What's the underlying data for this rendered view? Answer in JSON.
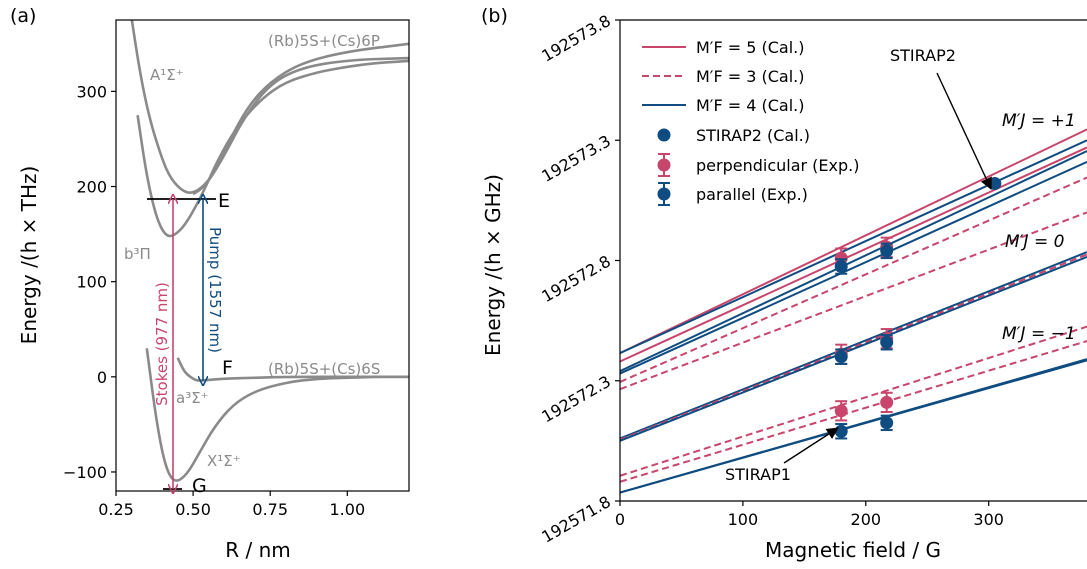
{
  "colors": {
    "red": "#c8456c",
    "blue": "#0f4c81",
    "gray": "#8a8a8a",
    "black": "#000000"
  },
  "panel_a": {
    "label": "(a)",
    "xlabel": "R / nm",
    "ylabel": "Energy /(h × THz)",
    "xticks": [
      "0.25",
      "0.50",
      "0.75",
      "1.00"
    ],
    "yticks": [
      "−100",
      "0",
      "100",
      "200",
      "300"
    ],
    "curve_labels": {
      "upper_asym": "(Rb)5S+(Cs)6P",
      "lower_asym": "(Rb)5S+(Cs)6S",
      "A": "A¹Σ⁺",
      "b": "b³Π",
      "a": "a³Σ⁺",
      "X": "X¹Σ⁺"
    },
    "states": {
      "E": "E",
      "F": "F",
      "G": "G"
    },
    "arrows": {
      "stokes": "Stokes (977 nm)",
      "pump": "Pump (1557 nm)"
    }
  },
  "panel_b": {
    "label": "(b)",
    "xlabel": "Magnetic field / G",
    "ylabel": "Energy /(h × GHz)",
    "xticks": [
      "0",
      "100",
      "200",
      "300"
    ],
    "yticks": [
      "192571.8",
      "192572.3",
      "192572.8",
      "192573.3",
      "192573.8"
    ],
    "legend": {
      "l1": "M′F = 5 (Cal.)",
      "l2": "M′F = 3 (Cal.)",
      "l3": "M′F = 4 (Cal.)",
      "l4": "STIRAP2 (Cal.)",
      "l5": "perpendicular (Exp.)",
      "l6": "parallel (Exp.)"
    },
    "mj_labels": {
      "plus": "M′J = +1",
      "zero": "M′J = 0",
      "minus": "M′J = −1"
    },
    "annotations": {
      "stirap1": "STIRAP1",
      "stirap2": "STIRAP2"
    }
  },
  "chart_data": [
    {
      "type": "line",
      "title": "",
      "xlabel": "R / nm",
      "ylabel": "Energy /(h × THz)",
      "xlim": [
        0.25,
        1.2
      ],
      "ylim": [
        -120,
        375
      ],
      "series": [
        {
          "name": "X¹Σ⁺",
          "x": [
            0.35,
            0.38,
            0.41,
            0.44,
            0.48,
            0.52,
            0.57,
            0.63,
            0.7,
            0.8,
            0.9,
            1.0,
            1.1,
            1.2
          ],
          "y": [
            30,
            -45,
            -95,
            -112,
            -103,
            -80,
            -52,
            -29,
            -15,
            -6,
            -2,
            -1,
            0,
            0
          ]
        },
        {
          "name": "a³Σ⁺",
          "x": [
            0.45,
            0.47,
            0.49,
            0.51,
            0.53,
            0.56,
            0.6,
            0.7,
            0.8,
            1.0,
            1.2
          ],
          "y": [
            20,
            6,
            0,
            -4,
            -4,
            -3,
            -2,
            -1,
            0,
            0,
            0
          ]
        },
        {
          "name": "b³Π",
          "x": [
            0.32,
            0.35,
            0.38,
            0.41,
            0.44,
            0.48,
            0.53,
            0.58,
            0.64,
            0.72,
            0.8,
            0.9,
            1.0,
            1.1,
            1.2
          ],
          "y": [
            275,
            210,
            168,
            148,
            148,
            162,
            192,
            228,
            262,
            292,
            310,
            320,
            326,
            330,
            332
          ]
        },
        {
          "name": "A¹Σ⁺",
          "x": [
            0.3,
            0.33,
            0.36,
            0.39,
            0.42,
            0.46,
            0.5,
            0.55,
            0.6,
            0.67,
            0.75,
            0.85,
            1.0,
            1.2
          ],
          "y": [
            378,
            315,
            270,
            238,
            212,
            196,
            192,
            205,
            232,
            275,
            308,
            325,
            333,
            335
          ]
        },
        {
          "name": "(Rb)5S+(Cs)6P",
          "x": [
            0.5,
            0.53,
            0.57,
            0.62,
            0.68,
            0.75,
            0.85,
            1.0,
            1.2
          ],
          "y": [
            192,
            198,
            215,
            250,
            285,
            310,
            330,
            342,
            350
          ]
        }
      ]
    },
    {
      "type": "line",
      "title": "",
      "xlabel": "Magnetic field / G",
      "ylabel": "Energy /(h × GHz)",
      "xlim": [
        0,
        380
      ],
      "ylim": [
        192571.8,
        192573.8
      ],
      "series": [
        {
          "name": "M′F = 5 (Cal.)",
          "x": [
            0,
            380
          ],
          "y": [
            192572.415,
            192573.345
          ]
        },
        {
          "name": "M′F = 5 (Cal.)",
          "x": [
            0,
            380
          ],
          "y": [
            192572.38,
            192573.27
          ]
        },
        {
          "name": "M′F = 4 (Cal.)",
          "x": [
            0,
            380
          ],
          "y": [
            192572.415,
            192573.3
          ]
        },
        {
          "name": "M′F = 4 (Cal.)",
          "x": [
            0,
            380
          ],
          "y": [
            192572.34,
            192573.255
          ]
        },
        {
          "name": "M′F = 4 (Cal.)",
          "x": [
            0,
            380
          ],
          "y": [
            192572.33,
            192573.21
          ]
        },
        {
          "name": "M′F = 3 (Cal.)",
          "x": [
            0,
            380
          ],
          "y": [
            192572.295,
            192573.145
          ]
        },
        {
          "name": "M′F = 3 (Cal.)",
          "x": [
            0,
            380
          ],
          "y": [
            192572.265,
            192573.0
          ]
        },
        {
          "name": "M′F = 4 (Cal.)",
          "x": [
            0,
            380
          ],
          "y": [
            192572.06,
            192572.835
          ]
        },
        {
          "name": "M′F = 3 (Cal.)",
          "x": [
            0,
            380
          ],
          "y": [
            192572.055,
            192572.825
          ]
        },
        {
          "name": "M′F = 4 (Cal.)",
          "x": [
            0,
            380
          ],
          "y": [
            192572.05,
            192572.815
          ]
        },
        {
          "name": "M′F = 3 (Cal.)",
          "x": [
            0,
            380
          ],
          "y": [
            192571.905,
            192572.525
          ]
        },
        {
          "name": "M′F = 3 (Cal.)",
          "x": [
            0,
            380
          ],
          "y": [
            192571.88,
            192572.465
          ]
        },
        {
          "name": "M′F = 4 (Cal.)",
          "x": [
            0,
            380
          ],
          "y": [
            192571.835,
            192572.385
          ]
        },
        {
          "name": "M′F = 4 (Cal.)",
          "x": [
            0,
            380
          ],
          "y": [
            192571.835,
            192572.39
          ]
        }
      ],
      "points": [
        {
          "name": "STIRAP2 (Cal.)",
          "x": [
            305
          ],
          "y": [
            192573.12
          ]
        },
        {
          "name": "perpendicular (Exp.)",
          "x": [
            180,
            217,
            180,
            217,
            180,
            217
          ],
          "y": [
            192572.81,
            192572.855,
            192572.41,
            192572.475,
            192572.175,
            192572.21
          ],
          "err": 0.04
        },
        {
          "name": "parallel (Exp.)",
          "x": [
            180,
            217,
            180,
            217,
            180,
            217
          ],
          "y": [
            192572.775,
            192572.84,
            192572.4,
            192572.46,
            192572.09,
            192572.125
          ],
          "err": 0.03
        }
      ]
    }
  ]
}
